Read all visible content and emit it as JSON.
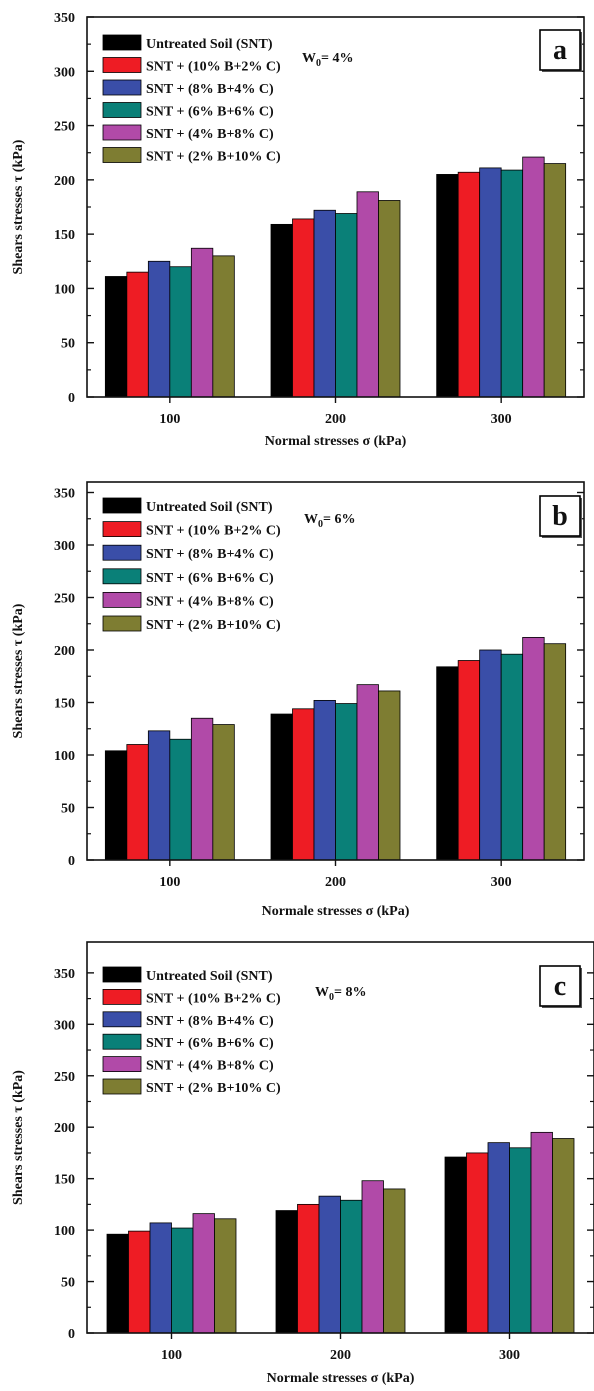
{
  "colors": {
    "series": [
      "#000000",
      "#ee1c24",
      "#3a4ea8",
      "#0a8078",
      "#b14aa8",
      "#7e7d32"
    ],
    "axis": "#111111",
    "background": "#ffffff"
  },
  "chart_data": [
    {
      "type": "bar",
      "panel_label": "a",
      "moisture_label": {
        "main": "W",
        "sub": "0",
        "rest": "= 4%"
      },
      "xlabel": "Normal stresses σ (kPa)",
      "ylabel": "Shears stresses τ (kPa)",
      "ylim": [
        0,
        350
      ],
      "yticks": [
        0,
        50,
        100,
        150,
        200,
        250,
        300,
        350
      ],
      "legend_position": "top-left",
      "grid": false,
      "categories": [
        "100",
        "200",
        "300"
      ],
      "series": [
        {
          "name": "Untreated Soil (SNT)",
          "values": [
            111,
            159,
            205
          ]
        },
        {
          "name": "SNT + (10% B+2% C)",
          "values": [
            115,
            164,
            207
          ]
        },
        {
          "name": "SNT + (8% B+4% C)",
          "values": [
            125,
            172,
            211
          ]
        },
        {
          "name": "SNT + (6% B+6% C)",
          "values": [
            120,
            169,
            209
          ]
        },
        {
          "name": "SNT + (4% B+8% C)",
          "values": [
            137,
            189,
            221
          ]
        },
        {
          "name": "SNT + (2% B+10% C)",
          "values": [
            130,
            181,
            215
          ]
        }
      ]
    },
    {
      "type": "bar",
      "panel_label": "b",
      "moisture_label": {
        "main": "W",
        "sub": "0",
        "rest": "= 6%"
      },
      "xlabel": "Normale stresses σ (kPa)",
      "ylabel": "Shears stresses τ (kPa)",
      "ylim": [
        0,
        360
      ],
      "yticks": [
        0,
        50,
        100,
        150,
        200,
        250,
        300,
        350
      ],
      "legend_position": "top-left",
      "grid": false,
      "categories": [
        "100",
        "200",
        "300"
      ],
      "series": [
        {
          "name": "Untreated Soil (SNT)",
          "values": [
            104,
            139,
            184
          ]
        },
        {
          "name": "SNT + (10% B+2% C)",
          "values": [
            110,
            144,
            190
          ]
        },
        {
          "name": "SNT + (8% B+4% C)",
          "values": [
            123,
            152,
            200
          ]
        },
        {
          "name": "SNT + (6% B+6% C)",
          "values": [
            115,
            149,
            196
          ]
        },
        {
          "name": "SNT + (4% B+8% C)",
          "values": [
            135,
            167,
            212
          ]
        },
        {
          "name": "SNT + (2% B+10% C)",
          "values": [
            129,
            161,
            206
          ]
        }
      ]
    },
    {
      "type": "bar",
      "panel_label": "c",
      "moisture_label": {
        "main": "W",
        "sub": "0",
        "rest": "= 8%"
      },
      "xlabel": "Normale stresses σ (kPa)",
      "ylabel": "Shears stresses τ (kPa)",
      "ylim": [
        0,
        380
      ],
      "yticks": [
        0,
        50,
        100,
        150,
        200,
        250,
        300,
        350
      ],
      "legend_position": "top-left",
      "grid": false,
      "categories": [
        "100",
        "200",
        "300"
      ],
      "series": [
        {
          "name": "Untreated Soil (SNT)",
          "values": [
            96,
            119,
            171
          ]
        },
        {
          "name": "SNT + (10% B+2% C)",
          "values": [
            99,
            125,
            175
          ]
        },
        {
          "name": "SNT + (8% B+4% C)",
          "values": [
            107,
            133,
            185
          ]
        },
        {
          "name": "SNT + (6% B+6% C)",
          "values": [
            102,
            129,
            180
          ]
        },
        {
          "name": "SNT + (4% B+8% C)",
          "values": [
            116,
            148,
            195
          ]
        },
        {
          "name": "SNT + (2% B+10% C)",
          "values": [
            111,
            140,
            189
          ]
        }
      ]
    }
  ]
}
